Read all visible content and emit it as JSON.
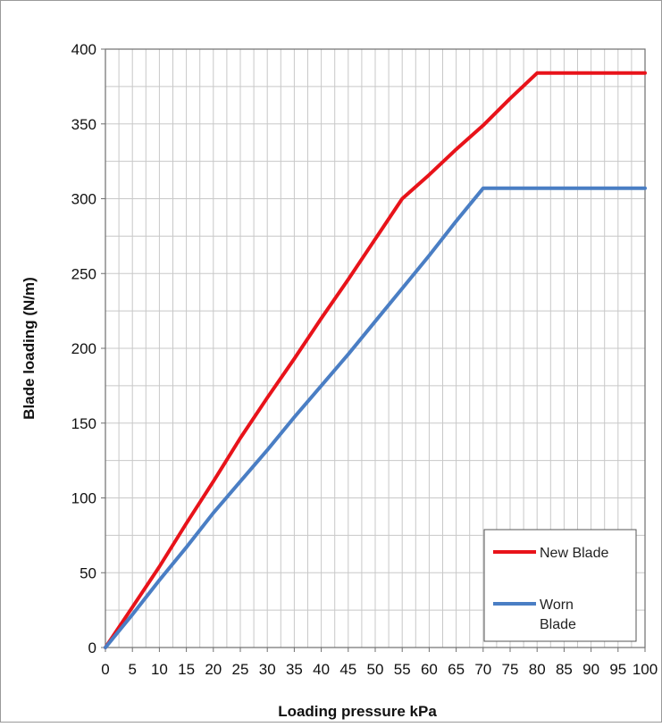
{
  "chart_data": {
    "type": "line",
    "xlabel": "Loading pressure kPa",
    "ylabel": "Blade loading (N/m)",
    "xlim": [
      0,
      100
    ],
    "ylim": [
      0,
      400
    ],
    "x_ticks": [
      0,
      5,
      10,
      15,
      20,
      25,
      30,
      35,
      40,
      45,
      50,
      55,
      60,
      65,
      70,
      75,
      80,
      85,
      90,
      95,
      100
    ],
    "y_ticks": [
      0,
      50,
      100,
      150,
      200,
      250,
      300,
      350,
      400
    ],
    "x_minor_step": 2.5,
    "y_minor_step": 25,
    "grid": true,
    "legend_position": "bottom-right",
    "series": [
      {
        "name": "New Blade",
        "color": "#e8131a",
        "x": [
          0,
          5,
          10,
          15,
          20,
          25,
          30,
          35,
          40,
          45,
          50,
          55,
          60,
          65,
          70,
          75,
          80,
          85,
          90,
          95,
          100
        ],
        "y": [
          0,
          27,
          54,
          83,
          111,
          140,
          167,
          193,
          220,
          246,
          273,
          300,
          316,
          333,
          349,
          367,
          384,
          384,
          384,
          384,
          384
        ]
      },
      {
        "name": "Worn Blade",
        "color": "#4a7ec4",
        "x": [
          0,
          5,
          10,
          15,
          20,
          25,
          30,
          35,
          40,
          45,
          50,
          55,
          60,
          65,
          70,
          75,
          80,
          85,
          90,
          95,
          100
        ],
        "y": [
          0,
          22,
          45,
          67,
          90,
          111,
          132,
          154,
          175,
          196,
          218,
          240,
          262,
          285,
          307,
          307,
          307,
          307,
          307,
          307,
          307
        ]
      }
    ],
    "legend": {
      "label_lines": [
        [
          "New Blade"
        ],
        [
          "Worn",
          "Blade"
        ]
      ]
    }
  }
}
